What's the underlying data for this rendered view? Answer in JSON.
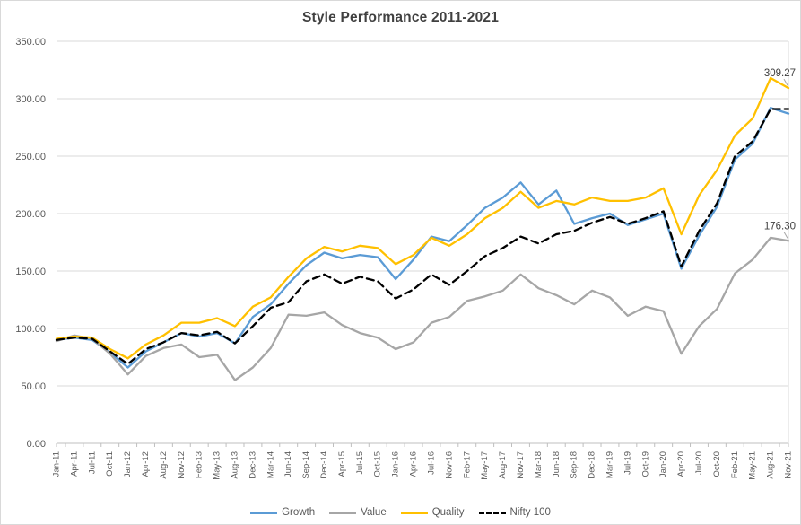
{
  "chart_data": {
    "type": "line",
    "title": "Style Performance 2011-2021",
    "categories": [
      "Jan-11",
      "Apr-11",
      "Jul-11",
      "Oct-11",
      "Jan-12",
      "Apr-12",
      "Aug-12",
      "Nov-12",
      "Feb-13",
      "May-13",
      "Aug-13",
      "Dec-13",
      "Mar-14",
      "Jun-14",
      "Sep-14",
      "Dec-14",
      "Apr-15",
      "Jul-15",
      "Oct-15",
      "Jan-16",
      "Apr-16",
      "Jul-16",
      "Nov-16",
      "Feb-17",
      "May-17",
      "Aug-17",
      "Nov-17",
      "Mar-18",
      "Jun-18",
      "Sep-18",
      "Dec-18",
      "Mar-19",
      "Jul-19",
      "Oct-19",
      "Jan-20",
      "Apr-20",
      "Jul-20",
      "Oct-20",
      "Feb-21",
      "May-21",
      "Aug-21",
      "Nov-21"
    ],
    "series": [
      {
        "name": "Growth",
        "color": "#5B9BD5",
        "dash": "",
        "values": [
          90,
          92,
          90,
          79,
          66,
          80,
          88,
          96,
          93,
          96,
          87,
          110,
          121,
          139,
          155,
          166,
          161,
          164,
          162,
          143,
          160,
          180,
          176,
          190,
          205,
          214,
          227,
          208,
          220,
          191,
          196,
          200,
          190,
          195,
          200,
          152,
          181,
          206,
          247,
          261,
          292,
          287
        ]
      },
      {
        "name": "Value",
        "color": "#A6A6A6",
        "dash": "",
        "values": [
          89,
          94,
          91,
          78,
          60,
          76,
          83,
          86,
          75,
          77,
          55,
          66,
          83,
          112,
          111,
          114,
          103,
          96,
          92,
          82,
          88,
          105,
          110,
          124,
          128,
          133,
          147,
          135,
          129,
          121,
          133,
          127,
          111,
          119,
          115,
          78,
          102,
          117,
          148,
          160,
          179,
          176.3
        ]
      },
      {
        "name": "Quality",
        "color": "#FFC000",
        "dash": "",
        "values": [
          91,
          93,
          92,
          82,
          74,
          86,
          94,
          105,
          105,
          109,
          102,
          119,
          127,
          145,
          161,
          171,
          167,
          172,
          170,
          156,
          164,
          179,
          172,
          182,
          196,
          205,
          219,
          205,
          211,
          208,
          214,
          211,
          211,
          214,
          222,
          182,
          216,
          238,
          268,
          283,
          318,
          309.27
        ]
      },
      {
        "name": "Nifty 100",
        "color": "#000000",
        "dash": "8 5",
        "values": [
          90,
          92,
          91,
          80,
          69,
          82,
          88,
          96,
          94,
          97,
          87,
          102,
          118,
          123,
          141,
          147,
          139,
          145,
          141,
          126,
          134,
          147,
          138,
          150,
          163,
          170,
          180,
          174,
          182,
          185,
          192,
          197,
          191,
          196,
          202,
          154,
          185,
          209,
          250,
          263,
          291,
          291
        ]
      }
    ],
    "y_axis": {
      "min": 0,
      "max": 350,
      "step": 50,
      "tick_labels": [
        "0.00",
        "50.00",
        "100.00",
        "150.00",
        "200.00",
        "250.00",
        "300.00",
        "350.00"
      ]
    },
    "grid": true,
    "legend_position": "bottom",
    "annotations": [
      {
        "text": "309.27",
        "series": "Quality",
        "at": "last"
      },
      {
        "text": "176.30",
        "series": "Value",
        "at": "last"
      }
    ]
  },
  "colors": {
    "grid": "#D9D9D9",
    "axis_line": "#BFBFBF",
    "plot_right_border": "#D9D9D9",
    "axis_text": "#595959",
    "title_text": "#404040",
    "annotation_text": "#404040",
    "leader_line": "#A6A6A6",
    "background": "#FFFFFF"
  }
}
